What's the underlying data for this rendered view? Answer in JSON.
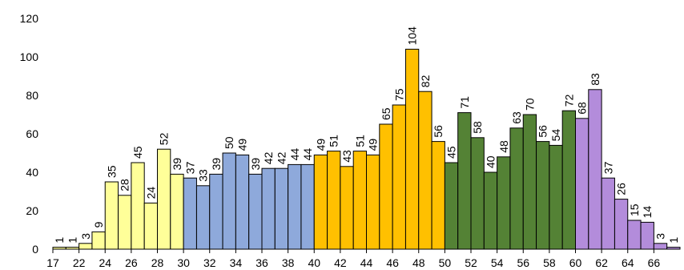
{
  "chart_data": {
    "type": "bar",
    "title": "",
    "xlabel": "",
    "ylabel": "",
    "ylim": [
      0,
      120
    ],
    "yticks": [
      0,
      20,
      40,
      60,
      80,
      100,
      120
    ],
    "grid": false,
    "legend": "none",
    "x_tick_labels": [
      "17",
      "22",
      "24",
      "26",
      "28",
      "30",
      "32",
      "34",
      "36",
      "38",
      "40",
      "42",
      "44",
      "46",
      "48",
      "50",
      "52",
      "54",
      "56",
      "58",
      "60",
      "62",
      "64",
      "66"
    ],
    "bar_edge_color": "#000000",
    "series": [
      {
        "color": "#FFFF99",
        "categories": [
          "17",
          "21",
          "22",
          "23",
          "24",
          "25",
          "26",
          "27",
          "28",
          "29"
        ],
        "values": [
          1,
          1,
          3,
          9,
          35,
          28,
          45,
          24,
          52,
          39
        ]
      },
      {
        "color": "#8EA9DB",
        "categories": [
          "30",
          "31",
          "32",
          "33",
          "34",
          "35",
          "36",
          "37",
          "38",
          "39"
        ],
        "values": [
          37,
          33,
          39,
          50,
          49,
          39,
          42,
          42,
          44,
          44
        ]
      },
      {
        "color": "#FFC000",
        "categories": [
          "40",
          "41",
          "42",
          "43",
          "44",
          "45",
          "46",
          "47",
          "48",
          "49"
        ],
        "values": [
          49,
          51,
          43,
          51,
          49,
          65,
          75,
          104,
          82,
          56
        ]
      },
      {
        "color": "#548235",
        "categories": [
          "50",
          "51",
          "52",
          "53",
          "54",
          "55",
          "56",
          "57",
          "58",
          "59"
        ],
        "values": [
          45,
          71,
          58,
          40,
          48,
          63,
          70,
          56,
          54,
          72
        ]
      },
      {
        "color": "#B38CDB",
        "categories": [
          "60",
          "61",
          "62",
          "63",
          "64",
          "65",
          "66",
          "67"
        ],
        "values": [
          68,
          83,
          37,
          26,
          15,
          14,
          3,
          1
        ]
      }
    ]
  }
}
